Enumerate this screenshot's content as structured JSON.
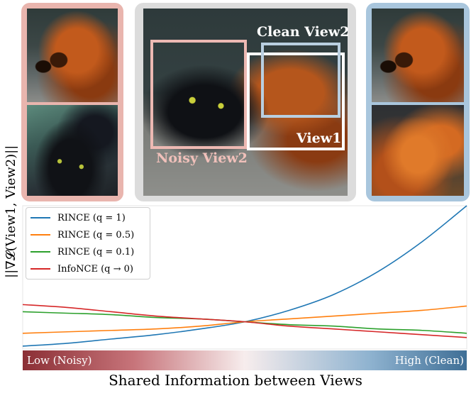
{
  "panels": {
    "left_label": "",
    "middle": {
      "crop_labels": {
        "clean_view2": "Clean View2",
        "view1": "View1",
        "noisy_view2": "Noisy View2"
      }
    },
    "colors": {
      "noisy": "#e9b5ae",
      "neutral": "#dcdcdc",
      "clean": "#a9c6dd"
    }
  },
  "gradient_bar": {
    "low": "Low (Noisy)",
    "high": "High (Clean)"
  },
  "chart_data": {
    "type": "line",
    "ylabel": "||∇𝓛(View1, View2)||",
    "xlabel": "Shared Information between Views",
    "xlim": [
      0,
      1
    ],
    "ylim": [
      0,
      1
    ],
    "grid": false,
    "legend_position": "top-left",
    "series": [
      {
        "name": "RINCE (q = 1)",
        "color": "#1f77b4",
        "x": [
          0,
          0.1,
          0.2,
          0.3,
          0.4,
          0.5,
          0.6,
          0.7,
          0.8,
          0.9,
          1.0
        ],
        "values": [
          0.02,
          0.04,
          0.07,
          0.1,
          0.14,
          0.19,
          0.27,
          0.38,
          0.54,
          0.75,
          1.0
        ]
      },
      {
        "name": "RINCE (q = 0.5)",
        "color": "#ff7f0e",
        "x": [
          0,
          0.1,
          0.2,
          0.3,
          0.4,
          0.5,
          0.6,
          0.7,
          0.8,
          0.9,
          1.0
        ],
        "values": [
          0.11,
          0.12,
          0.13,
          0.14,
          0.16,
          0.19,
          0.21,
          0.23,
          0.25,
          0.27,
          0.3
        ]
      },
      {
        "name": "RINCE (q = 0.1)",
        "color": "#2ca02c",
        "x": [
          0,
          0.1,
          0.2,
          0.3,
          0.4,
          0.5,
          0.6,
          0.7,
          0.8,
          0.9,
          1.0
        ],
        "values": [
          0.26,
          0.25,
          0.24,
          0.22,
          0.21,
          0.19,
          0.17,
          0.16,
          0.14,
          0.13,
          0.11
        ]
      },
      {
        "name": "InfoNCE (q → 0)",
        "color": "#d62728",
        "x": [
          0,
          0.1,
          0.2,
          0.3,
          0.4,
          0.5,
          0.6,
          0.7,
          0.8,
          0.9,
          1.0
        ],
        "values": [
          0.31,
          0.29,
          0.26,
          0.23,
          0.21,
          0.19,
          0.16,
          0.14,
          0.12,
          0.1,
          0.08
        ]
      }
    ]
  }
}
